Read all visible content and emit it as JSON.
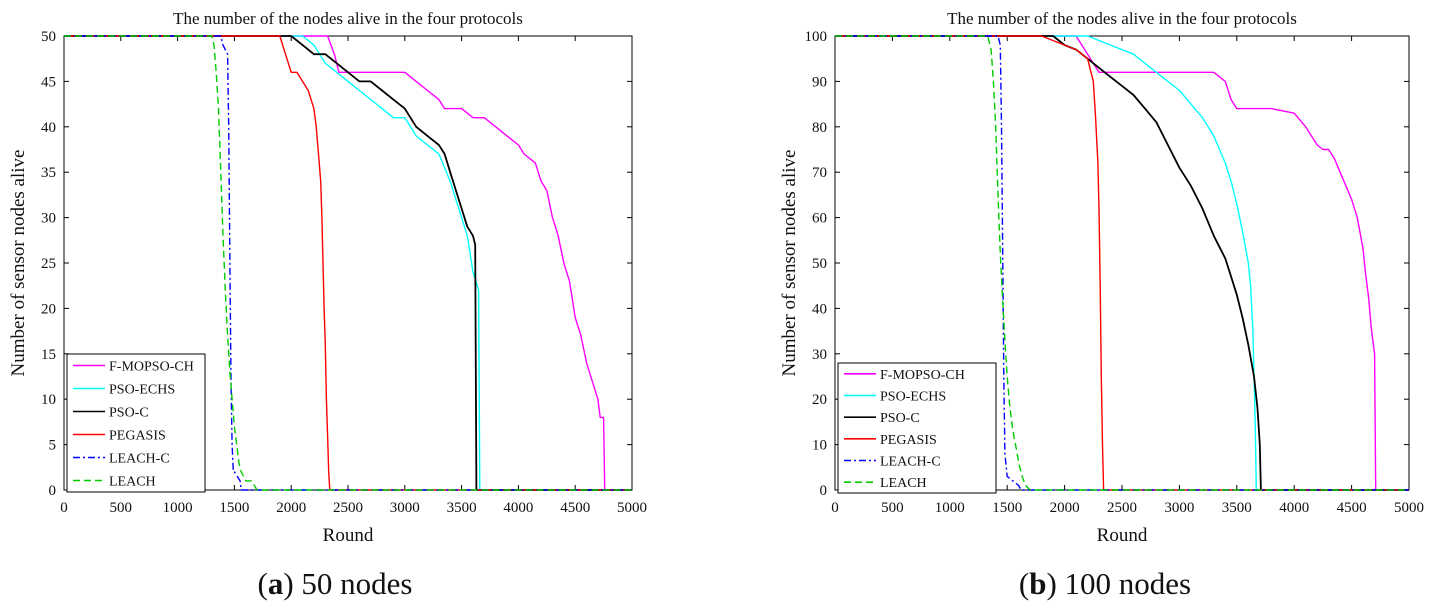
{
  "figure": {
    "captions": [
      {
        "letter": "a",
        "text": " 50 nodes"
      },
      {
        "letter": "b",
        "text": " 100 nodes"
      }
    ]
  },
  "chart_data": [
    {
      "type": "line",
      "title": "The number of the nodes alive in the four protocols",
      "xlabel": "Round",
      "ylabel": "Number of sensor nodes alive",
      "xlim": [
        0,
        5000
      ],
      "ylim": [
        0,
        50
      ],
      "xticks": [
        "0",
        "500",
        "1000",
        "1500",
        "2000",
        "2500",
        "3000",
        "3500",
        "4000",
        "4500",
        "5000"
      ],
      "yticks": [
        "0",
        "5",
        "10",
        "15",
        "20",
        "25",
        "30",
        "35",
        "40",
        "45",
        "50"
      ],
      "legend_position": "bottom-left",
      "series": [
        {
          "name": "F-MOPSO-CH",
          "color": "#ff00ff",
          "dash": "solid",
          "x": [
            0,
            2320,
            2380,
            2420,
            3000,
            3100,
            3200,
            3300,
            3350,
            3400,
            3500,
            3600,
            3700,
            3800,
            3900,
            4000,
            4050,
            4150,
            4200,
            4250,
            4300,
            4350,
            4400,
            4450,
            4500,
            4550,
            4600,
            4650,
            4700,
            4720,
            4750,
            4760
          ],
          "y": [
            50,
            50,
            48,
            46,
            46,
            45,
            44,
            43,
            42,
            42,
            42,
            41,
            41,
            40,
            39,
            38,
            37,
            36,
            34,
            33,
            30,
            28,
            25,
            23,
            19,
            17,
            14,
            12,
            10,
            8,
            8,
            0
          ]
        },
        {
          "name": "PSO-ECHS",
          "color": "#00ffff",
          "dash": "solid",
          "x": [
            0,
            2100,
            2200,
            2300,
            2400,
            2500,
            2600,
            2700,
            2800,
            2900,
            3000,
            3100,
            3200,
            3300,
            3400,
            3450,
            3500,
            3550,
            3600,
            3650,
            3660
          ],
          "y": [
            50,
            50,
            49,
            47,
            46,
            45,
            44,
            43,
            42,
            41,
            41,
            39,
            38,
            37,
            34,
            32,
            30,
            28,
            24,
            22,
            0
          ]
        },
        {
          "name": "PSO-C",
          "color": "#000000",
          "dash": "solid",
          "x": [
            0,
            2000,
            2100,
            2200,
            2300,
            2400,
            2500,
            2600,
            2700,
            2800,
            2900,
            3000,
            3100,
            3200,
            3300,
            3350,
            3400,
            3450,
            3500,
            3550,
            3600,
            3620,
            3630
          ],
          "y": [
            50,
            50,
            49,
            48,
            48,
            47,
            46,
            45,
            45,
            44,
            43,
            42,
            40,
            39,
            38,
            37,
            35,
            33,
            31,
            29,
            28,
            27,
            0
          ]
        },
        {
          "name": "PEGASIS",
          "color": "#ff0000",
          "dash": "solid",
          "x": [
            0,
            1900,
            1950,
            2000,
            2050,
            2100,
            2150,
            2200,
            2220,
            2240,
            2260,
            2270,
            2280,
            2290,
            2300,
            2310,
            2320,
            2330,
            2340
          ],
          "y": [
            50,
            50,
            48,
            46,
            46,
            45,
            44,
            42,
            40,
            37,
            34,
            30,
            25,
            20,
            16,
            10,
            6,
            2,
            0
          ]
        },
        {
          "name": "LEACH-C",
          "color": "#0000ff",
          "dash": "dashdot",
          "x": [
            0,
            1380,
            1400,
            1440,
            1450,
            1460,
            1470,
            1480,
            1490,
            1500,
            1550,
            1560
          ],
          "y": [
            50,
            50,
            49,
            48,
            40,
            25,
            12,
            5,
            2,
            2,
            1,
            0
          ]
        },
        {
          "name": "LEACH",
          "color": "#00cc00",
          "dash": "dashed",
          "x": [
            0,
            1300,
            1320,
            1340,
            1360,
            1380,
            1400,
            1420,
            1440,
            1460,
            1480,
            1500,
            1520,
            1540,
            1560,
            1600,
            1650,
            1700
          ],
          "y": [
            50,
            50,
            49,
            46,
            42,
            35,
            28,
            22,
            17,
            13,
            10,
            7,
            5,
            3,
            2,
            1,
            1,
            0
          ]
        }
      ]
    },
    {
      "type": "line",
      "title": "The number of the nodes alive in the four protocols",
      "xlabel": "Round",
      "ylabel": "Number of sensor nodes alive",
      "xlim": [
        0,
        5000
      ],
      "ylim": [
        0,
        100
      ],
      "xticks": [
        "0",
        "500",
        "1000",
        "1500",
        "2000",
        "2500",
        "3000",
        "3500",
        "4000",
        "4500",
        "5000"
      ],
      "yticks": [
        "0",
        "10",
        "20",
        "30",
        "40",
        "50",
        "60",
        "70",
        "80",
        "90",
        "100"
      ],
      "legend_position": "bottom-left",
      "series": [
        {
          "name": "F-MOPSO-CH",
          "color": "#ff00ff",
          "dash": "solid",
          "x": [
            0,
            2100,
            2200,
            2300,
            2500,
            3000,
            3300,
            3400,
            3450,
            3500,
            3600,
            3800,
            4000,
            4100,
            4150,
            4200,
            4250,
            4300,
            4350,
            4400,
            4450,
            4500,
            4550,
            4600,
            4620,
            4650,
            4670,
            4690,
            4700,
            4710
          ],
          "y": [
            100,
            100,
            96,
            92,
            92,
            92,
            92,
            90,
            86,
            84,
            84,
            84,
            83,
            80,
            78,
            76,
            75,
            75,
            73,
            70,
            67,
            64,
            60,
            53,
            48,
            42,
            36,
            32,
            30,
            0
          ]
        },
        {
          "name": "PSO-ECHS",
          "color": "#00ffff",
          "dash": "solid",
          "x": [
            0,
            2200,
            2400,
            2600,
            2800,
            3000,
            3100,
            3200,
            3300,
            3400,
            3450,
            3500,
            3550,
            3600,
            3620,
            3640,
            3650,
            3660,
            3670
          ],
          "y": [
            100,
            100,
            98,
            96,
            92,
            88,
            85,
            82,
            78,
            72,
            68,
            63,
            57,
            50,
            45,
            35,
            25,
            15,
            0
          ]
        },
        {
          "name": "PSO-C",
          "color": "#000000",
          "dash": "solid",
          "x": [
            0,
            1900,
            2000,
            2100,
            2200,
            2300,
            2400,
            2500,
            2600,
            2700,
            2800,
            2900,
            3000,
            3100,
            3200,
            3300,
            3400,
            3450,
            3500,
            3550,
            3600,
            3650,
            3680,
            3700,
            3710
          ],
          "y": [
            100,
            100,
            98,
            97,
            95,
            93,
            91,
            89,
            87,
            84,
            81,
            76,
            71,
            67,
            62,
            56,
            51,
            47,
            43,
            38,
            32,
            25,
            18,
            10,
            0
          ]
        },
        {
          "name": "PEGASIS",
          "color": "#ff0000",
          "dash": "solid",
          "x": [
            0,
            1800,
            2000,
            2100,
            2200,
            2250,
            2270,
            2290,
            2300,
            2310,
            2320,
            2330,
            2340
          ],
          "y": [
            100,
            100,
            98,
            97,
            95,
            90,
            82,
            72,
            62,
            45,
            25,
            10,
            0
          ]
        },
        {
          "name": "LEACH-C",
          "color": "#0000ff",
          "dash": "dashdot",
          "x": [
            0,
            1420,
            1440,
            1450,
            1460,
            1470,
            1480,
            1500,
            1550,
            1600,
            1620
          ],
          "y": [
            100,
            100,
            98,
            80,
            55,
            25,
            8,
            3,
            2,
            1,
            0
          ]
        },
        {
          "name": "LEACH",
          "color": "#00cc00",
          "dash": "dashed",
          "x": [
            0,
            1330,
            1360,
            1380,
            1400,
            1420,
            1440,
            1460,
            1480,
            1500,
            1520,
            1550,
            1580,
            1600,
            1630,
            1660,
            1700
          ],
          "y": [
            100,
            100,
            97,
            90,
            80,
            65,
            52,
            42,
            33,
            25,
            19,
            13,
            9,
            6,
            3,
            1,
            0
          ]
        }
      ]
    }
  ]
}
